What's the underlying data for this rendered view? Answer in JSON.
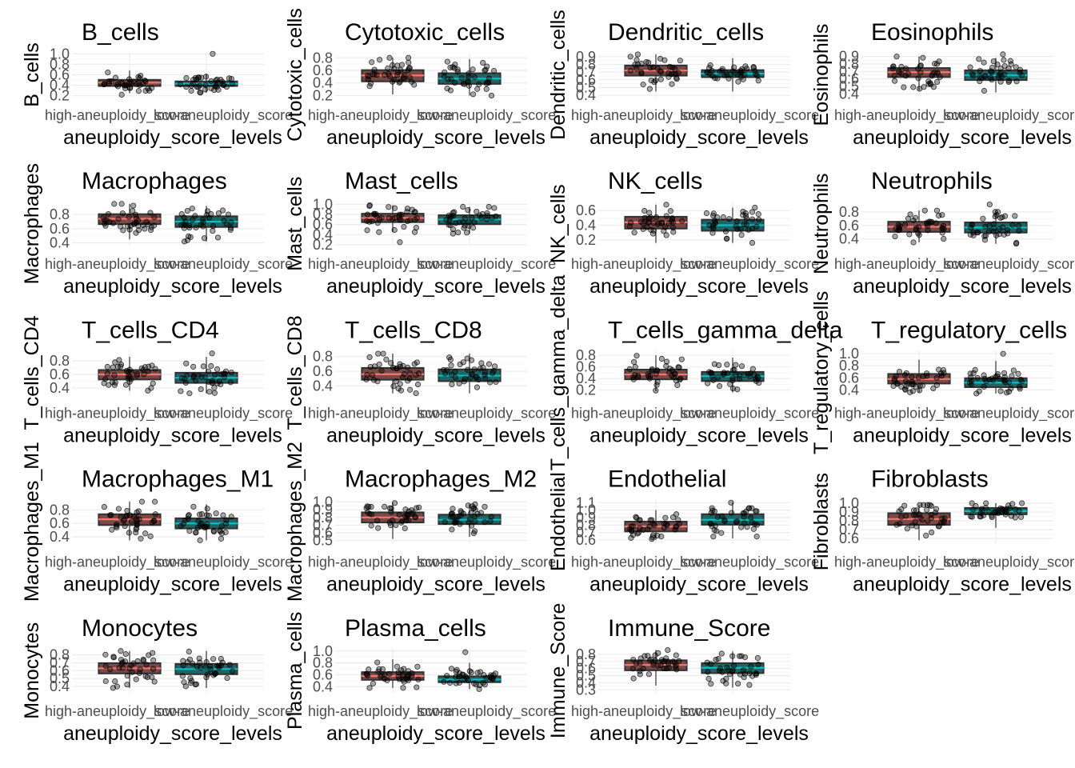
{
  "figure": {
    "x_axis_title": "aneuploidy_score_levels",
    "categories": [
      "high-aneuploidy_score",
      "low-aneuploidy_score"
    ],
    "colors": {
      "high": "#F8766D",
      "low": "#00BFC4",
      "box_line": "#333333",
      "point": "#000000",
      "grid": "#EBEBEB"
    }
  },
  "chart_data": [
    {
      "type": "box",
      "title": "B_cells",
      "ylabel": "B_cells",
      "categories": [
        "high-aneuploidy_score",
        "low-aneuploidy_score"
      ],
      "ylim": [
        0.18,
        1.02
      ],
      "ticks": [
        "0.2",
        "0.4",
        "0.6",
        "0.8",
        "1.0"
      ],
      "tick_values": [
        0.2,
        0.4,
        0.6,
        0.8,
        1.0
      ],
      "boxes": [
        {
          "q1": 0.38,
          "median": 0.45,
          "q3": 0.51,
          "min": 0.25,
          "max": 0.68
        },
        {
          "q1": 0.38,
          "median": 0.43,
          "q3": 0.48,
          "min": 0.26,
          "max": 0.62
        }
      ],
      "outliers": [
        [
          0.22
        ],
        [
          1.0
        ]
      ]
    },
    {
      "type": "box",
      "title": "Cytotoxic_cells",
      "ylabel": "Cytotoxic_cells",
      "categories": [
        "high-aneuploidy_score",
        "low-aneuploidy_score"
      ],
      "ylim": [
        0.18,
        0.88
      ],
      "ticks": [
        "0.2",
        "0.4",
        "0.6",
        "0.8"
      ],
      "tick_values": [
        0.2,
        0.4,
        0.6,
        0.8
      ],
      "boxes": [
        {
          "q1": 0.42,
          "median": 0.52,
          "q3": 0.61,
          "min": 0.22,
          "max": 0.8
        },
        {
          "q1": 0.38,
          "median": 0.47,
          "q3": 0.56,
          "min": 0.2,
          "max": 0.78
        }
      ],
      "outliers": [
        [],
        []
      ]
    },
    {
      "type": "box",
      "title": "Dendritic_cells",
      "ylabel": "Dendritic_cells",
      "categories": [
        "high-aneuploidy_score",
        "low-aneuploidy_score"
      ],
      "ylim": [
        0.38,
        0.95
      ],
      "ticks": [
        "0.4",
        "0.5",
        "0.6",
        "0.7",
        "0.8",
        "0.9"
      ],
      "tick_values": [
        0.4,
        0.5,
        0.6,
        0.7,
        0.8,
        0.9
      ],
      "boxes": [
        {
          "q1": 0.65,
          "median": 0.72,
          "q3": 0.79,
          "min": 0.45,
          "max": 0.93
        },
        {
          "q1": 0.63,
          "median": 0.68,
          "q3": 0.73,
          "min": 0.45,
          "max": 0.88
        }
      ],
      "outliers": [
        [],
        []
      ]
    },
    {
      "type": "box",
      "title": "Eosinophils",
      "ylabel": "Eosinophils",
      "categories": [
        "high-aneuploidy_score",
        "low-aneuploidy_score"
      ],
      "ylim": [
        0.36,
        0.95
      ],
      "ticks": [
        "0.4",
        "0.5",
        "0.6",
        "0.7",
        "0.8",
        "0.9"
      ],
      "tick_values": [
        0.4,
        0.5,
        0.6,
        0.7,
        0.8,
        0.9
      ],
      "boxes": [
        {
          "q1": 0.62,
          "median": 0.69,
          "q3": 0.75,
          "min": 0.45,
          "max": 0.9
        },
        {
          "q1": 0.58,
          "median": 0.65,
          "q3": 0.72,
          "min": 0.42,
          "max": 0.88
        }
      ],
      "outliers": [
        [],
        [
          0.93
        ]
      ]
    },
    {
      "type": "box",
      "title": "Macrophages",
      "ylabel": "Macrophages",
      "categories": [
        "high-aneuploidy_score",
        "low-aneuploidy_score"
      ],
      "ylim": [
        0.36,
        0.98
      ],
      "ticks": [
        "0.4",
        "0.6",
        "0.8"
      ],
      "tick_values": [
        0.4,
        0.6,
        0.8
      ],
      "boxes": [
        {
          "q1": 0.66,
          "median": 0.74,
          "q3": 0.81,
          "min": 0.45,
          "max": 0.95
        },
        {
          "q1": 0.62,
          "median": 0.7,
          "q3": 0.78,
          "min": 0.42,
          "max": 0.92
        }
      ],
      "outliers": [
        [],
        []
      ]
    },
    {
      "type": "box",
      "title": "Mast_cells",
      "ylabel": "Mast_cells",
      "categories": [
        "high-aneuploidy_score",
        "low-aneuploidy_score"
      ],
      "ylim": [
        0.18,
        1.05
      ],
      "ticks": [
        "0.2",
        "0.4",
        "0.6",
        "0.8",
        "1.0"
      ],
      "tick_values": [
        0.2,
        0.4,
        0.6,
        0.8,
        1.0
      ],
      "boxes": [
        {
          "q1": 0.64,
          "median": 0.73,
          "q3": 0.82,
          "min": 0.45,
          "max": 0.98
        },
        {
          "q1": 0.6,
          "median": 0.7,
          "q3": 0.79,
          "min": 0.42,
          "max": 0.95
        }
      ],
      "outliers": [
        [
          0.25
        ],
        []
      ]
    },
    {
      "type": "box",
      "title": "NK_cells",
      "ylabel": "NK_cells",
      "categories": [
        "high-aneuploidy_score",
        "low-aneuploidy_score"
      ],
      "ylim": [
        0.12,
        0.72
      ],
      "ticks": [
        "0.2",
        "0.4",
        "0.6"
      ],
      "tick_values": [
        0.2,
        0.4,
        0.6
      ],
      "boxes": [
        {
          "q1": 0.35,
          "median": 0.44,
          "q3": 0.52,
          "min": 0.16,
          "max": 0.68
        },
        {
          "q1": 0.32,
          "median": 0.4,
          "q3": 0.48,
          "min": 0.16,
          "max": 0.64
        }
      ],
      "outliers": [
        [],
        []
      ]
    },
    {
      "type": "box",
      "title": "Neutrophils",
      "ylabel": "Neutrophils",
      "categories": [
        "high-aneuploidy_score",
        "low-aneuploidy_score"
      ],
      "ylim": [
        0.3,
        0.95
      ],
      "ticks": [
        "0.4",
        "0.6",
        "0.8"
      ],
      "tick_values": [
        0.4,
        0.6,
        0.8
      ],
      "boxes": [
        {
          "q1": 0.5,
          "median": 0.58,
          "q3": 0.66,
          "min": 0.35,
          "max": 0.82
        },
        {
          "q1": 0.49,
          "median": 0.57,
          "q3": 0.65,
          "min": 0.33,
          "max": 0.8
        }
      ],
      "outliers": [
        [],
        [
          0.91
        ]
      ]
    },
    {
      "type": "box",
      "title": "T_cells_CD4",
      "ylabel": "T_cells_CD4",
      "categories": [
        "high-aneuploidy_score",
        "low-aneuploidy_score"
      ],
      "ylim": [
        0.3,
        0.95
      ],
      "ticks": [
        "0.4",
        "0.6",
        "0.8"
      ],
      "tick_values": [
        0.4,
        0.6,
        0.8
      ],
      "boxes": [
        {
          "q1": 0.52,
          "median": 0.6,
          "q3": 0.67,
          "min": 0.36,
          "max": 0.86
        },
        {
          "q1": 0.47,
          "median": 0.55,
          "q3": 0.63,
          "min": 0.32,
          "max": 0.86
        }
      ],
      "outliers": [
        [],
        [
          0.91
        ]
      ]
    },
    {
      "type": "box",
      "title": "T_cells_CD8",
      "ylabel": "T_cells_CD8",
      "categories": [
        "high-aneuploidy_score",
        "low-aneuploidy_score"
      ],
      "ylim": [
        0.28,
        0.88
      ],
      "ticks": [
        "0.4",
        "0.6",
        "0.8"
      ],
      "tick_values": [
        0.4,
        0.6,
        0.8
      ],
      "boxes": [
        {
          "q1": 0.48,
          "median": 0.56,
          "q3": 0.65,
          "min": 0.3,
          "max": 0.84
        },
        {
          "q1": 0.46,
          "median": 0.54,
          "q3": 0.63,
          "min": 0.3,
          "max": 0.84
        }
      ],
      "outliers": [
        [],
        []
      ]
    },
    {
      "type": "box",
      "title": "T_cells_gamma_delta",
      "ylabel": "T_cells_gamma_delta",
      "categories": [
        "high-aneuploidy_score",
        "low-aneuploidy_score"
      ],
      "ylim": [
        0.12,
        0.88
      ],
      "ticks": [
        "0.2",
        "0.4",
        "0.6",
        "0.8"
      ],
      "tick_values": [
        0.2,
        0.4,
        0.6,
        0.8
      ],
      "boxes": [
        {
          "q1": 0.38,
          "median": 0.47,
          "q3": 0.56,
          "min": 0.18,
          "max": 0.8
        },
        {
          "q1": 0.35,
          "median": 0.44,
          "q3": 0.52,
          "min": 0.16,
          "max": 0.76
        }
      ],
      "outliers": [
        [],
        []
      ]
    },
    {
      "type": "box",
      "title": "T_regulatory_cells",
      "ylabel": "T_regulatory_cells",
      "categories": [
        "high-aneuploidy_score",
        "low-aneuploidy_score"
      ],
      "ylim": [
        0.32,
        1.05
      ],
      "ticks": [
        "0.4",
        "0.6",
        "0.8",
        "1.0"
      ],
      "tick_values": [
        0.4,
        0.6,
        0.8,
        1.0
      ],
      "boxes": [
        {
          "q1": 0.5,
          "median": 0.58,
          "q3": 0.67,
          "min": 0.36,
          "max": 0.9
        },
        {
          "q1": 0.44,
          "median": 0.52,
          "q3": 0.6,
          "min": 0.34,
          "max": 0.88
        }
      ],
      "outliers": [
        [],
        [
          1.0
        ]
      ]
    },
    {
      "type": "box",
      "title": "Macrophages_M1",
      "ylabel": "Macrophages_M1",
      "categories": [
        "high-aneuploidy_score",
        "low-aneuploidy_score"
      ],
      "ylim": [
        0.3,
        0.95
      ],
      "ticks": [
        "0.4",
        "0.6",
        "0.8"
      ],
      "tick_values": [
        0.4,
        0.6,
        0.8
      ],
      "boxes": [
        {
          "q1": 0.57,
          "median": 0.66,
          "q3": 0.74,
          "min": 0.35,
          "max": 0.92
        },
        {
          "q1": 0.52,
          "median": 0.6,
          "q3": 0.68,
          "min": 0.35,
          "max": 0.88
        }
      ],
      "outliers": [
        [],
        []
      ]
    },
    {
      "type": "box",
      "title": "Macrophages_M2",
      "ylabel": "Macrophages_M2",
      "categories": [
        "high-aneuploidy_score",
        "low-aneuploidy_score"
      ],
      "ylim": [
        0.46,
        1.03
      ],
      "ticks": [
        "0.5",
        "0.6",
        "0.7",
        "0.8",
        "0.9",
        "1.0"
      ],
      "tick_values": [
        0.5,
        0.6,
        0.7,
        0.8,
        0.9,
        1.0
      ],
      "boxes": [
        {
          "q1": 0.73,
          "median": 0.8,
          "q3": 0.87,
          "min": 0.52,
          "max": 0.99
        },
        {
          "q1": 0.71,
          "median": 0.77,
          "q3": 0.84,
          "min": 0.55,
          "max": 0.97
        }
      ],
      "outliers": [
        [],
        []
      ]
    },
    {
      "type": "box",
      "title": "Endothelial",
      "ylabel": "Endothelial",
      "categories": [
        "high-aneuploidy_score",
        "low-aneuploidy_score"
      ],
      "ylim": [
        0.55,
        1.14
      ],
      "ticks": [
        "0.6",
        "0.7",
        "0.8",
        "0.9",
        "1.0",
        "1.1"
      ],
      "tick_values": [
        0.6,
        0.7,
        0.8,
        0.9,
        1.0,
        1.1
      ],
      "boxes": [
        {
          "q1": 0.71,
          "median": 0.78,
          "q3": 0.85,
          "min": 0.6,
          "max": 1.0
        },
        {
          "q1": 0.8,
          "median": 0.87,
          "q3": 0.95,
          "min": 0.62,
          "max": 1.1
        }
      ],
      "outliers": [
        [],
        []
      ]
    },
    {
      "type": "box",
      "title": "Fibroblasts",
      "ylabel": "Fibroblasts",
      "categories": [
        "high-aneuploidy_score",
        "low-aneuploidy_score"
      ],
      "ylim": [
        0.54,
        1.04
      ],
      "ticks": [
        "0.6",
        "0.7",
        "0.8",
        "0.9",
        "1.0"
      ],
      "tick_values": [
        0.6,
        0.7,
        0.8,
        0.9,
        1.0
      ],
      "boxes": [
        {
          "q1": 0.75,
          "median": 0.82,
          "q3": 0.89,
          "min": 0.58,
          "max": 0.98
        },
        {
          "q1": 0.87,
          "median": 0.91,
          "q3": 0.95,
          "min": 0.72,
          "max": 1.0
        }
      ],
      "outliers": [
        [],
        []
      ]
    },
    {
      "type": "box",
      "title": "Monocytes",
      "ylabel": "Monocytes",
      "categories": [
        "high-aneuploidy_score",
        "low-aneuploidy_score"
      ],
      "ylim": [
        0.32,
        0.88
      ],
      "ticks": [
        "0.4",
        "0.5",
        "0.6",
        "0.7",
        "0.8"
      ],
      "tick_values": [
        0.4,
        0.5,
        0.6,
        0.7,
        0.8
      ],
      "boxes": [
        {
          "q1": 0.56,
          "median": 0.63,
          "q3": 0.7,
          "min": 0.38,
          "max": 0.85
        },
        {
          "q1": 0.55,
          "median": 0.62,
          "q3": 0.69,
          "min": 0.38,
          "max": 0.85
        }
      ],
      "outliers": [
        [],
        []
      ]
    },
    {
      "type": "box",
      "title": "Plasma_cells",
      "ylabel": "Plasma_cells",
      "categories": [
        "high-aneuploidy_score",
        "low-aneuploidy_score"
      ],
      "ylim": [
        0.3,
        1.04
      ],
      "ticks": [
        "0.4",
        "0.6",
        "0.8",
        "1.0"
      ],
      "tick_values": [
        0.4,
        0.6,
        0.8,
        1.0
      ],
      "boxes": [
        {
          "q1": 0.51,
          "median": 0.58,
          "q3": 0.65,
          "min": 0.38,
          "max": 0.86
        },
        {
          "q1": 0.47,
          "median": 0.52,
          "q3": 0.58,
          "min": 0.36,
          "max": 0.8
        }
      ],
      "outliers": [
        [],
        [
          0.98
        ]
      ]
    },
    {
      "type": "box",
      "title": "Immune_Score",
      "ylabel": "Immune_Score",
      "categories": [
        "high-aneuploidy_score",
        "low-aneuploidy_score"
      ],
      "ylim": [
        0.26,
        0.88
      ],
      "ticks": [
        "0.3",
        "0.4",
        "0.5",
        "0.6",
        "0.7",
        "0.8"
      ],
      "tick_values": [
        0.3,
        0.4,
        0.5,
        0.6,
        0.7,
        0.8
      ],
      "boxes": [
        {
          "q1": 0.57,
          "median": 0.65,
          "q3": 0.72,
          "min": 0.36,
          "max": 0.86
        },
        {
          "q1": 0.53,
          "median": 0.61,
          "q3": 0.68,
          "min": 0.33,
          "max": 0.84
        }
      ],
      "outliers": [
        [],
        []
      ]
    }
  ]
}
